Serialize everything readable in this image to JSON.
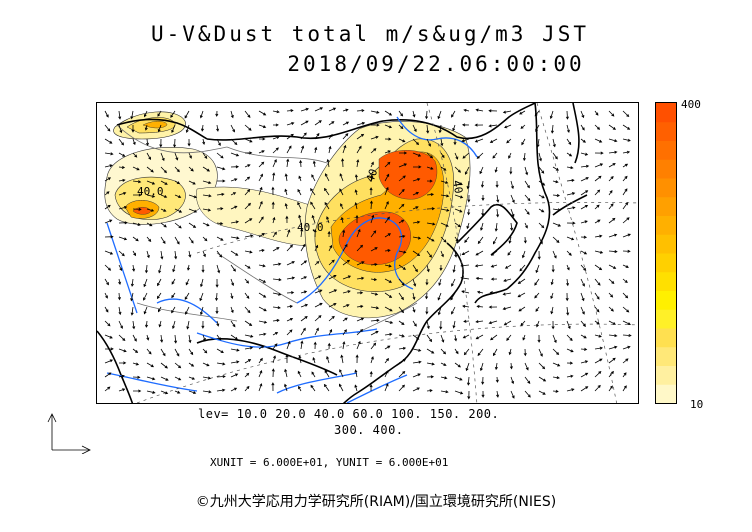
{
  "title": {
    "line1": "U-V&Dust total m/s&ug/m3 JST",
    "line2": "2018/09/22.06:00:00"
  },
  "colorbar": {
    "max_label": "400",
    "min_label": "10",
    "colors": [
      "#fff8c8",
      "#fff0a0",
      "#ffe878",
      "#ffe050",
      "#fff028",
      "#fff000",
      "#ffe000",
      "#ffd000",
      "#ffc000",
      "#ffb000",
      "#ffa000",
      "#ff9000",
      "#ff8000",
      "#ff7000",
      "#ff6000",
      "#ff5000"
    ]
  },
  "levels": {
    "line1": "lev= 10.0 20.0 40.0 60.0 100. 150. 200.",
    "line2": "300. 400."
  },
  "units_line": "XUNIT = 6.000E+01, YUNIT = 6.000E+01",
  "contour_labels": [
    "40.0",
    "40.0",
    "40",
    "40"
  ],
  "copyright": "©九州大学応用力学研究所(RIAM)/国立環境研究所(NIES)",
  "colors": {
    "coast": "#000000",
    "river": "#1e6cff",
    "border": "#606060",
    "arrow": "#000000"
  }
}
